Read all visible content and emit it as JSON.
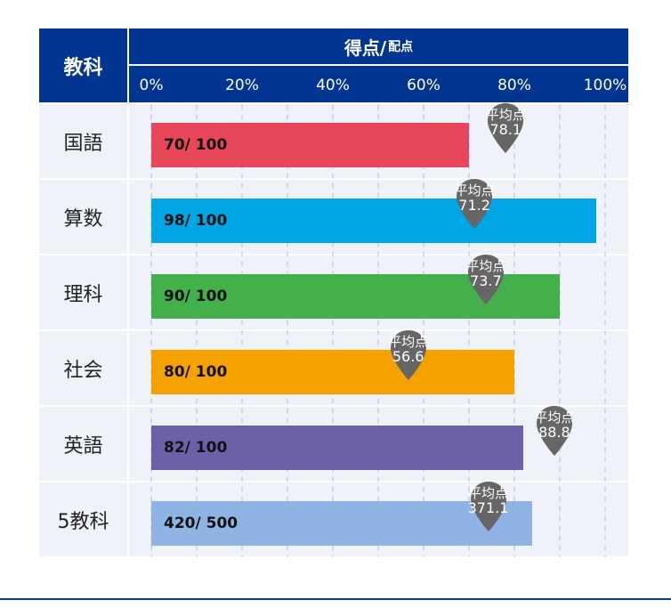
{
  "chart_data": {
    "type": "bar",
    "orientation": "horizontal",
    "header": {
      "subject": "教科",
      "score": "得点/",
      "score_sub": "配点"
    },
    "x_ticks": [
      "0%",
      "20%",
      "40%",
      "60%",
      "80%",
      "100%"
    ],
    "xlim": [
      0,
      100
    ],
    "grid": true,
    "average_label": "平均点",
    "rows": [
      {
        "subject": "国語",
        "score": 70,
        "max": 100,
        "label": "70/ 100",
        "average": 78.1,
        "average_text": "78.1",
        "color": "#e8465a"
      },
      {
        "subject": "算数",
        "score": 98,
        "max": 100,
        "label": "98/ 100",
        "average": 71.2,
        "average_text": "71.2",
        "color": "#00a6e4"
      },
      {
        "subject": "理科",
        "score": 90,
        "max": 100,
        "label": "90/ 100",
        "average": 73.7,
        "average_text": "73.7",
        "color": "#44b04c"
      },
      {
        "subject": "社会",
        "score": 80,
        "max": 100,
        "label": "80/ 100",
        "average": 56.6,
        "average_text": "56.6",
        "color": "#f5a200"
      },
      {
        "subject": "英語",
        "score": 82,
        "max": 100,
        "label": "82/ 100",
        "average": 88.8,
        "average_text": "88.8",
        "color": "#6d60a8"
      },
      {
        "subject": "5教科",
        "score": 420,
        "max": 500,
        "label": "420/ 500",
        "average": 371.1,
        "average_text": "371.1",
        "color": "#8fb4e4"
      }
    ]
  },
  "colors": {
    "header": "#003591",
    "row_bg": "#eff2f8",
    "pin": "#666666",
    "bottom_rule": "#0c3b8b"
  }
}
